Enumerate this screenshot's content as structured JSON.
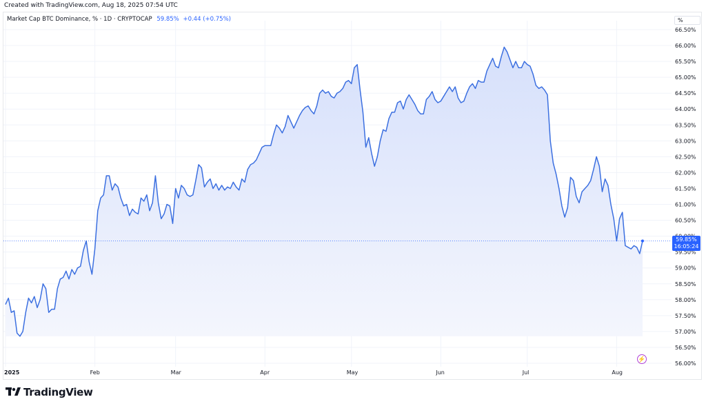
{
  "header": {
    "created_text": "Created with TradingView.com, Aug 18, 2025 07:54 UTC"
  },
  "legend": {
    "symbol_text": "Market Cap BTC Dominance, % · 1D · CRYPTOCAP",
    "last_value": "59.85%",
    "change": "+0.44 (+0.75%)"
  },
  "price_scale": {
    "unit_label": "%",
    "current_value": "59.85%",
    "countdown": "16:05:24"
  },
  "footer": {
    "brand": "TradingView"
  },
  "colors": {
    "line": "#3b6fe0",
    "fill_top": "#d6e0fb",
    "fill_bottom": "#f4f6fd",
    "accent": "#2962ff",
    "flash": "#b040d8"
  },
  "icons": {
    "logo": "tradingview-logo-icon",
    "flash": "lightning-icon"
  },
  "chart_data": {
    "type": "area",
    "ylim": [
      55.9,
      66.6
    ],
    "ytick_values": [
      56.0,
      56.5,
      57.0,
      57.5,
      58.0,
      58.5,
      59.0,
      59.5,
      60.0,
      60.5,
      61.0,
      61.5,
      62.0,
      62.5,
      63.0,
      63.5,
      64.0,
      64.5,
      65.0,
      65.5,
      66.0,
      66.5
    ],
    "ytick_labels": [
      "56.00%",
      "56.50%",
      "57.00%",
      "57.50%",
      "58.00%",
      "58.50%",
      "59.00%",
      "59.50%",
      "60.00%",
      "60.50%",
      "61.00%",
      "61.50%",
      "62.00%",
      "62.50%",
      "63.00%",
      "63.50%",
      "64.00%",
      "64.50%",
      "65.00%",
      "65.50%",
      "66.00%",
      "66.50%"
    ],
    "xticks": [
      {
        "label": "2025",
        "date": "2025-01-01"
      },
      {
        "label": "Feb",
        "date": "2025-02-01"
      },
      {
        "label": "Mar",
        "date": "2025-03-01"
      },
      {
        "label": "Apr",
        "date": "2025-04-01"
      },
      {
        "label": "May",
        "date": "2025-05-01"
      },
      {
        "label": "Jun",
        "date": "2025-06-01"
      },
      {
        "label": "Jul",
        "date": "2025-07-01"
      },
      {
        "label": "Aug",
        "date": "2025-08-01"
      }
    ],
    "last_value": 59.85,
    "series": [
      {
        "points": [
          [
            "2025-01-01",
            57.85
          ],
          [
            "2025-01-02",
            58.05
          ],
          [
            "2025-01-03",
            57.6
          ],
          [
            "2025-01-04",
            57.65
          ],
          [
            "2025-01-05",
            56.95
          ],
          [
            "2025-01-06",
            56.85
          ],
          [
            "2025-01-07",
            57.0
          ],
          [
            "2025-01-08",
            57.6
          ],
          [
            "2025-01-09",
            58.05
          ],
          [
            "2025-01-10",
            57.9
          ],
          [
            "2025-01-11",
            58.1
          ],
          [
            "2025-01-12",
            57.75
          ],
          [
            "2025-01-13",
            58.0
          ],
          [
            "2025-01-14",
            58.5
          ],
          [
            "2025-01-15",
            58.35
          ],
          [
            "2025-01-16",
            57.6
          ],
          [
            "2025-01-17",
            57.7
          ],
          [
            "2025-01-18",
            57.7
          ],
          [
            "2025-01-19",
            58.35
          ],
          [
            "2025-01-20",
            58.65
          ],
          [
            "2025-01-21",
            58.7
          ],
          [
            "2025-01-22",
            58.9
          ],
          [
            "2025-01-23",
            58.65
          ],
          [
            "2025-01-24",
            58.95
          ],
          [
            "2025-01-25",
            58.8
          ],
          [
            "2025-01-26",
            59.0
          ],
          [
            "2025-01-27",
            59.05
          ],
          [
            "2025-01-28",
            59.55
          ],
          [
            "2025-01-29",
            59.85
          ],
          [
            "2025-01-30",
            59.2
          ],
          [
            "2025-01-31",
            58.8
          ],
          [
            "2025-02-01",
            59.6
          ],
          [
            "2025-02-02",
            60.8
          ],
          [
            "2025-02-03",
            61.2
          ],
          [
            "2025-02-04",
            61.3
          ],
          [
            "2025-02-05",
            61.9
          ],
          [
            "2025-02-06",
            61.9
          ],
          [
            "2025-02-07",
            61.45
          ],
          [
            "2025-02-08",
            61.65
          ],
          [
            "2025-02-09",
            61.55
          ],
          [
            "2025-02-10",
            61.2
          ],
          [
            "2025-02-11",
            60.95
          ],
          [
            "2025-02-12",
            61.0
          ],
          [
            "2025-02-13",
            60.65
          ],
          [
            "2025-02-14",
            60.85
          ],
          [
            "2025-02-15",
            60.75
          ],
          [
            "2025-02-16",
            60.7
          ],
          [
            "2025-02-17",
            61.2
          ],
          [
            "2025-02-18",
            61.1
          ],
          [
            "2025-02-19",
            61.3
          ],
          [
            "2025-02-20",
            60.8
          ],
          [
            "2025-02-21",
            61.05
          ],
          [
            "2025-02-22",
            61.9
          ],
          [
            "2025-02-23",
            61.05
          ],
          [
            "2025-02-24",
            60.55
          ],
          [
            "2025-02-25",
            60.7
          ],
          [
            "2025-02-26",
            61.0
          ],
          [
            "2025-02-27",
            60.95
          ],
          [
            "2025-02-28",
            60.4
          ],
          [
            "2025-03-01",
            61.5
          ],
          [
            "2025-03-02",
            61.2
          ],
          [
            "2025-03-03",
            61.6
          ],
          [
            "2025-03-04",
            61.5
          ],
          [
            "2025-03-05",
            61.3
          ],
          [
            "2025-03-06",
            61.25
          ],
          [
            "2025-03-07",
            61.3
          ],
          [
            "2025-03-08",
            61.75
          ],
          [
            "2025-03-09",
            62.25
          ],
          [
            "2025-03-10",
            62.15
          ],
          [
            "2025-03-11",
            61.55
          ],
          [
            "2025-03-12",
            61.7
          ],
          [
            "2025-03-13",
            61.8
          ],
          [
            "2025-03-14",
            61.5
          ],
          [
            "2025-03-15",
            61.65
          ],
          [
            "2025-03-16",
            61.45
          ],
          [
            "2025-03-17",
            61.6
          ],
          [
            "2025-03-18",
            61.45
          ],
          [
            "2025-03-19",
            61.55
          ],
          [
            "2025-03-20",
            61.5
          ],
          [
            "2025-03-21",
            61.7
          ],
          [
            "2025-03-22",
            61.55
          ],
          [
            "2025-03-23",
            61.45
          ],
          [
            "2025-03-24",
            61.8
          ],
          [
            "2025-03-25",
            61.7
          ],
          [
            "2025-03-26",
            62.1
          ],
          [
            "2025-03-27",
            62.25
          ],
          [
            "2025-03-28",
            62.3
          ],
          [
            "2025-03-29",
            62.4
          ],
          [
            "2025-03-30",
            62.6
          ],
          [
            "2025-03-31",
            62.8
          ],
          [
            "2025-04-01",
            62.85
          ],
          [
            "2025-04-02",
            62.85
          ],
          [
            "2025-04-03",
            62.85
          ],
          [
            "2025-04-04",
            63.2
          ],
          [
            "2025-04-05",
            63.5
          ],
          [
            "2025-04-06",
            63.4
          ],
          [
            "2025-04-07",
            63.25
          ],
          [
            "2025-04-08",
            63.45
          ],
          [
            "2025-04-09",
            63.8
          ],
          [
            "2025-04-10",
            63.6
          ],
          [
            "2025-04-11",
            63.4
          ],
          [
            "2025-04-12",
            63.6
          ],
          [
            "2025-04-13",
            63.8
          ],
          [
            "2025-04-14",
            63.95
          ],
          [
            "2025-04-15",
            64.05
          ],
          [
            "2025-04-16",
            64.1
          ],
          [
            "2025-04-17",
            63.95
          ],
          [
            "2025-04-18",
            63.85
          ],
          [
            "2025-04-19",
            64.1
          ],
          [
            "2025-04-20",
            64.5
          ],
          [
            "2025-04-21",
            64.6
          ],
          [
            "2025-04-22",
            64.5
          ],
          [
            "2025-04-23",
            64.55
          ],
          [
            "2025-04-24",
            64.4
          ],
          [
            "2025-04-25",
            64.35
          ],
          [
            "2025-04-26",
            64.5
          ],
          [
            "2025-04-27",
            64.55
          ],
          [
            "2025-04-28",
            64.65
          ],
          [
            "2025-04-29",
            64.85
          ],
          [
            "2025-04-30",
            64.9
          ],
          [
            "2025-05-01",
            64.8
          ],
          [
            "2025-05-02",
            65.3
          ],
          [
            "2025-05-03",
            65.4
          ],
          [
            "2025-05-04",
            64.6
          ],
          [
            "2025-05-05",
            63.9
          ],
          [
            "2025-05-06",
            62.8
          ],
          [
            "2025-05-07",
            63.1
          ],
          [
            "2025-05-08",
            62.6
          ],
          [
            "2025-05-09",
            62.2
          ],
          [
            "2025-05-10",
            62.5
          ],
          [
            "2025-05-11",
            63.0
          ],
          [
            "2025-05-12",
            63.35
          ],
          [
            "2025-05-13",
            63.3
          ],
          [
            "2025-05-14",
            63.7
          ],
          [
            "2025-05-15",
            63.9
          ],
          [
            "2025-05-16",
            63.9
          ],
          [
            "2025-05-17",
            64.2
          ],
          [
            "2025-05-18",
            64.25
          ],
          [
            "2025-05-19",
            64.0
          ],
          [
            "2025-05-20",
            64.3
          ],
          [
            "2025-05-21",
            64.45
          ],
          [
            "2025-05-22",
            64.3
          ],
          [
            "2025-05-23",
            64.15
          ],
          [
            "2025-05-24",
            63.95
          ],
          [
            "2025-05-25",
            63.85
          ],
          [
            "2025-05-26",
            63.85
          ],
          [
            "2025-05-27",
            64.3
          ],
          [
            "2025-05-28",
            64.4
          ],
          [
            "2025-05-29",
            64.55
          ],
          [
            "2025-05-30",
            64.3
          ],
          [
            "2025-05-31",
            64.2
          ],
          [
            "2025-06-01",
            64.25
          ],
          [
            "2025-06-02",
            64.4
          ],
          [
            "2025-06-03",
            64.55
          ],
          [
            "2025-06-04",
            64.7
          ],
          [
            "2025-06-05",
            64.55
          ],
          [
            "2025-06-06",
            64.7
          ],
          [
            "2025-06-07",
            64.35
          ],
          [
            "2025-06-08",
            64.2
          ],
          [
            "2025-06-09",
            64.25
          ],
          [
            "2025-06-10",
            64.5
          ],
          [
            "2025-06-11",
            64.7
          ],
          [
            "2025-06-12",
            64.8
          ],
          [
            "2025-06-13",
            64.65
          ],
          [
            "2025-06-14",
            64.9
          ],
          [
            "2025-06-15",
            64.85
          ],
          [
            "2025-06-16",
            64.85
          ],
          [
            "2025-06-17",
            65.2
          ],
          [
            "2025-06-18",
            65.4
          ],
          [
            "2025-06-19",
            65.6
          ],
          [
            "2025-06-20",
            65.35
          ],
          [
            "2025-06-21",
            65.3
          ],
          [
            "2025-06-22",
            65.65
          ],
          [
            "2025-06-23",
            65.95
          ],
          [
            "2025-06-24",
            65.8
          ],
          [
            "2025-06-25",
            65.55
          ],
          [
            "2025-06-26",
            65.3
          ],
          [
            "2025-06-27",
            65.5
          ],
          [
            "2025-06-28",
            65.3
          ],
          [
            "2025-06-29",
            65.3
          ],
          [
            "2025-06-30",
            65.5
          ],
          [
            "2025-07-01",
            65.4
          ],
          [
            "2025-07-02",
            65.35
          ],
          [
            "2025-07-03",
            65.1
          ],
          [
            "2025-07-04",
            64.75
          ],
          [
            "2025-07-05",
            64.65
          ],
          [
            "2025-07-06",
            64.7
          ],
          [
            "2025-07-07",
            64.6
          ],
          [
            "2025-07-08",
            64.45
          ],
          [
            "2025-07-09",
            63.0
          ],
          [
            "2025-07-10",
            62.3
          ],
          [
            "2025-07-11",
            61.95
          ],
          [
            "2025-07-12",
            61.5
          ],
          [
            "2025-07-13",
            60.95
          ],
          [
            "2025-07-14",
            60.6
          ],
          [
            "2025-07-15",
            60.9
          ],
          [
            "2025-07-16",
            61.85
          ],
          [
            "2025-07-17",
            61.75
          ],
          [
            "2025-07-18",
            61.25
          ],
          [
            "2025-07-19",
            61.05
          ],
          [
            "2025-07-20",
            61.4
          ],
          [
            "2025-07-21",
            61.5
          ],
          [
            "2025-07-22",
            61.6
          ],
          [
            "2025-07-23",
            61.75
          ],
          [
            "2025-07-24",
            62.1
          ],
          [
            "2025-07-25",
            62.5
          ],
          [
            "2025-07-26",
            62.2
          ],
          [
            "2025-07-27",
            61.4
          ],
          [
            "2025-07-28",
            61.8
          ],
          [
            "2025-07-29",
            61.6
          ],
          [
            "2025-07-30",
            61.0
          ],
          [
            "2025-07-31",
            60.55
          ],
          [
            "2025-08-01",
            59.85
          ],
          [
            "2025-08-02",
            60.55
          ],
          [
            "2025-08-03",
            60.75
          ],
          [
            "2025-08-04",
            59.7
          ],
          [
            "2025-08-05",
            59.65
          ],
          [
            "2025-08-06",
            59.6
          ],
          [
            "2025-08-07",
            59.7
          ],
          [
            "2025-08-08",
            59.65
          ],
          [
            "2025-08-09",
            59.45
          ],
          [
            "2025-08-10",
            59.85
          ]
        ]
      }
    ]
  }
}
